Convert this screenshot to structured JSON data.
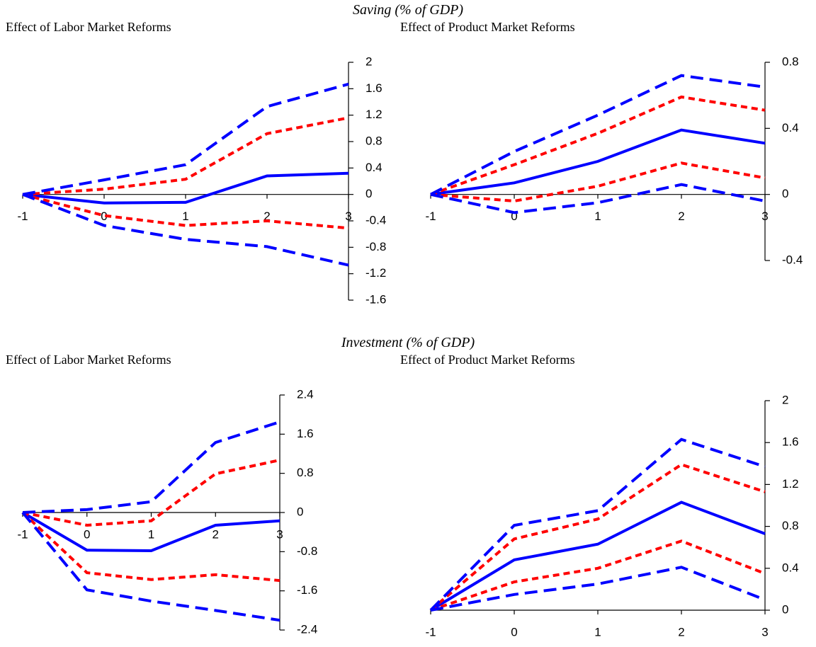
{
  "section_titles": [
    "Saving (% of GDP)",
    "Investment (% of GDP)"
  ],
  "chart_data": [
    {
      "type": "line",
      "title": "Effect of Labor Market Reforms",
      "x": [
        -1,
        0,
        1,
        2,
        3
      ],
      "xlim": [
        -1,
        3
      ],
      "xticks": [
        -1,
        0,
        1,
        2,
        3
      ],
      "ylim": [
        -1.6,
        2
      ],
      "yticks": [
        -1.6,
        -1.2,
        -0.8,
        -0.4,
        0,
        0.4,
        0.8,
        1.2,
        1.6,
        2
      ],
      "series": [
        {
          "color": "#0000ff",
          "style": "solid",
          "values": [
            0,
            -0.13,
            -0.12,
            0.28,
            0.32
          ]
        },
        {
          "color": "#ff0000",
          "style": "dashed",
          "values": [
            0,
            0.08,
            0.23,
            0.92,
            1.16
          ]
        },
        {
          "color": "#ff0000",
          "style": "dashed",
          "values": [
            0,
            -0.32,
            -0.47,
            -0.4,
            -0.51
          ]
        },
        {
          "color": "#0000ff",
          "style": "long-dashed",
          "values": [
            0,
            0.22,
            0.45,
            1.33,
            1.67
          ]
        },
        {
          "color": "#0000ff",
          "style": "long-dashed",
          "values": [
            0,
            -0.47,
            -0.68,
            -0.79,
            -1.07
          ]
        }
      ]
    },
    {
      "type": "line",
      "title": "Effect of Product Market Reforms",
      "x": [
        -1,
        0,
        1,
        2,
        3
      ],
      "xlim": [
        -1,
        3
      ],
      "xticks": [
        -1,
        0,
        1,
        2,
        3
      ],
      "ylim": [
        -0.4,
        0.8
      ],
      "yticks": [
        -0.4,
        0,
        0.4,
        0.8
      ],
      "series": [
        {
          "color": "#0000ff",
          "style": "solid",
          "values": [
            0,
            0.07,
            0.2,
            0.39,
            0.31
          ]
        },
        {
          "color": "#ff0000",
          "style": "dashed",
          "values": [
            0,
            0.18,
            0.37,
            0.59,
            0.51
          ]
        },
        {
          "color": "#ff0000",
          "style": "dashed",
          "values": [
            0,
            -0.04,
            0.05,
            0.19,
            0.1
          ]
        },
        {
          "color": "#0000ff",
          "style": "long-dashed",
          "values": [
            0,
            0.26,
            0.48,
            0.72,
            0.65
          ]
        },
        {
          "color": "#0000ff",
          "style": "long-dashed",
          "values": [
            0,
            -0.11,
            -0.05,
            0.06,
            -0.04
          ]
        }
      ]
    },
    {
      "type": "line",
      "title": "Effect of Labor Market Reforms",
      "x": [
        -1,
        0,
        1,
        2,
        3
      ],
      "xlim": [
        -1,
        3
      ],
      "xticks": [
        -1,
        0,
        1,
        2,
        3
      ],
      "ylim": [
        -2.4,
        2.4
      ],
      "yticks": [
        -2.4,
        -1.6,
        -0.8,
        0,
        0.8,
        1.6,
        2.4
      ],
      "series": [
        {
          "color": "#0000ff",
          "style": "solid",
          "values": [
            0,
            -0.77,
            -0.78,
            -0.26,
            -0.17
          ]
        },
        {
          "color": "#ff0000",
          "style": "dashed",
          "values": [
            0,
            -0.26,
            -0.17,
            0.79,
            1.07
          ]
        },
        {
          "color": "#ff0000",
          "style": "dashed",
          "values": [
            0,
            -1.23,
            -1.37,
            -1.27,
            -1.39
          ]
        },
        {
          "color": "#0000ff",
          "style": "long-dashed",
          "values": [
            0,
            0.06,
            0.22,
            1.43,
            1.85
          ]
        },
        {
          "color": "#0000ff",
          "style": "long-dashed",
          "values": [
            0,
            -1.58,
            -1.81,
            -2.0,
            -2.2
          ]
        }
      ]
    },
    {
      "type": "line",
      "title": "Effect of Product Market Reforms",
      "x": [
        -1,
        0,
        1,
        2,
        3
      ],
      "xlim": [
        -1,
        3
      ],
      "xticks": [
        -1,
        0,
        1,
        2,
        3
      ],
      "ylim": [
        0,
        2
      ],
      "yticks": [
        0,
        0.4,
        0.8,
        1.2,
        1.6,
        2
      ],
      "series": [
        {
          "color": "#0000ff",
          "style": "solid",
          "values": [
            0,
            0.48,
            0.63,
            1.03,
            0.73
          ]
        },
        {
          "color": "#ff0000",
          "style": "dashed",
          "values": [
            0,
            0.68,
            0.87,
            1.39,
            1.13
          ]
        },
        {
          "color": "#ff0000",
          "style": "dashed",
          "values": [
            0,
            0.27,
            0.4,
            0.66,
            0.35
          ]
        },
        {
          "color": "#0000ff",
          "style": "long-dashed",
          "values": [
            0,
            0.81,
            0.95,
            1.63,
            1.37
          ]
        },
        {
          "color": "#0000ff",
          "style": "long-dashed",
          "values": [
            0,
            0.15,
            0.25,
            0.41,
            0.1
          ]
        }
      ]
    }
  ]
}
